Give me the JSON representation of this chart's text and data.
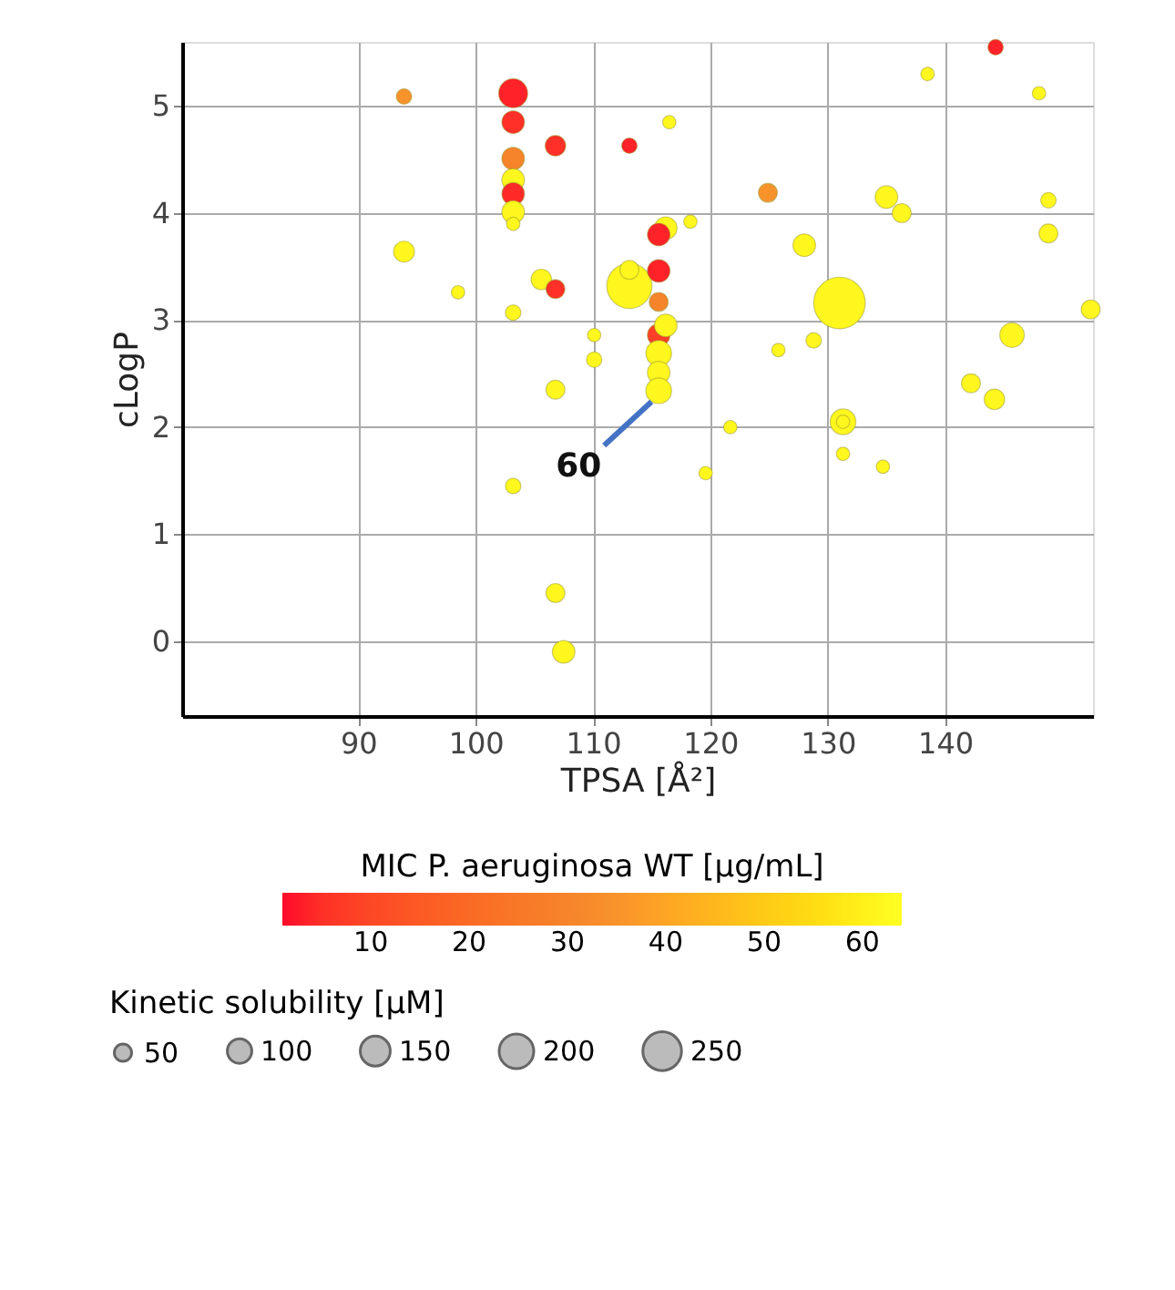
{
  "chart_data": {
    "type": "bubble",
    "xlabel": "TPSA [Å²]",
    "ylabel": "cLogP",
    "clabel": "MIC P. aeruginosa WT [µg/mL]",
    "legend_title": "Kinetic solubility [µM]",
    "xlim": [
      75,
      152.6
    ],
    "ylim": [
      -0.7,
      5.6
    ],
    "xticks": [
      90,
      100,
      110,
      120,
      130,
      140
    ],
    "yticks": [
      0,
      1,
      2,
      3,
      4,
      5
    ],
    "grid": true,
    "marker": "circle",
    "clim": [
      1,
      64
    ],
    "cticks": [
      10,
      20,
      30,
      40,
      50,
      60
    ],
    "size_legend": [
      50,
      100,
      150,
      200,
      250
    ],
    "annotations": [
      {
        "text": "60",
        "x": 115.6,
        "y": 2.34
      }
    ],
    "series": [
      {
        "x": [
          93.9,
          103.2,
          103.2,
          106.8,
          113.1,
          103.2,
          103.2,
          103.2,
          103.2,
          103.2,
          93.9,
          98.5,
          105.6,
          106.8,
          103.2,
          113.1,
          113.1,
          116.2,
          115.6,
          118.3,
          116.5,
          115.6,
          115.6,
          115.6,
          116.2,
          115.6,
          115.6,
          115.6,
          110.1,
          110.1,
          106.8,
          103.2,
          106.8,
          107.5,
          121.7,
          119.6,
          144.3,
          138.5,
          148.0,
          124.9,
          135.0,
          136.3,
          148.8,
          148.8,
          128.0,
          131.0,
          152.4,
          145.7,
          128.8,
          125.8,
          142.2,
          144.2,
          131.3,
          131.3,
          131.3,
          134.7
        ],
        "values": [
          5.09,
          5.12,
          4.85,
          4.63,
          4.63,
          4.51,
          4.31,
          4.18,
          4.01,
          3.9,
          3.64,
          3.26,
          3.38,
          3.29,
          3.07,
          3.32,
          3.47,
          3.86,
          3.8,
          3.92,
          4.85,
          3.46,
          3.17,
          2.86,
          2.95,
          2.69,
          2.51,
          2.34,
          2.86,
          2.63,
          2.35,
          1.45,
          0.45,
          -0.1,
          2.0,
          1.57,
          5.55,
          5.3,
          5.12,
          4.19,
          4.15,
          4.0,
          4.12,
          3.81,
          3.7,
          3.16,
          3.1,
          2.86,
          2.81,
          2.72,
          2.41,
          2.26,
          2.05,
          2.05,
          1.75,
          1.63
        ],
        "sizes": [
          40,
          140,
          85,
          70,
          40,
          85,
          85,
          85,
          85,
          30,
          73,
          30,
          70,
          60,
          40,
          340,
          60,
          85,
          85,
          30,
          30,
          85,
          60,
          85,
          85,
          110,
          85,
          110,
          30,
          40,
          60,
          40,
          60,
          85,
          30,
          30,
          40,
          30,
          30,
          60,
          85,
          60,
          40,
          60,
          85,
          444,
          60,
          100,
          40,
          30,
          60,
          70,
          110,
          30,
          30,
          30
        ],
        "cvalues": [
          35,
          3,
          5,
          5,
          3,
          30,
          62,
          4,
          62,
          62,
          62,
          62,
          62,
          5,
          62,
          62,
          62,
          62,
          3,
          62,
          62,
          3,
          30,
          8,
          62,
          62,
          62,
          62,
          62,
          62,
          62,
          62,
          62,
          62,
          62,
          62,
          3,
          62,
          62,
          35,
          62,
          62,
          62,
          62,
          62,
          62,
          62,
          62,
          62,
          62,
          62,
          62,
          62,
          62,
          62,
          62
        ]
      }
    ]
  }
}
